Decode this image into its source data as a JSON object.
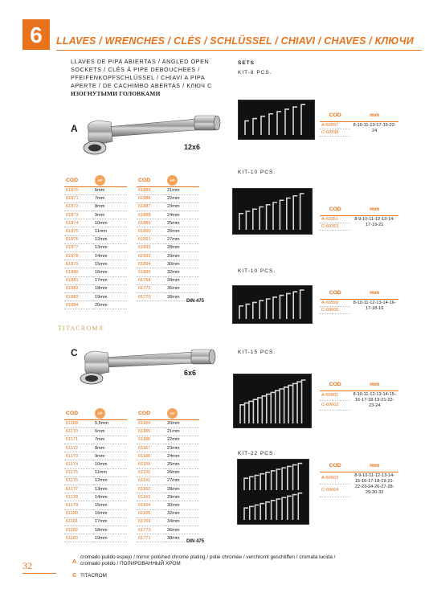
{
  "header": {
    "chapter_number": "6",
    "title": "LLAVES / WRENCHES / CLÉS / SCHLÜSSEL / CHIAVI / CHAVES / КЛЮЧИ"
  },
  "description": {
    "lines": [
      "LLAVES DE PIPA ABIERTAS / ANGLED OPEN",
      "SOCKETS / CLÉS À PIPE DEBOUCHEES /",
      "PFEIFENKOPFSCHLÜSSEL / CHIAVI A PIPA",
      "APERTE / DE CACHIMBO ABERTAS / КЛЮЧ С"
    ],
    "ru_line": "ИЗОГНУТЫМИ ГОЛОВКАМИ"
  },
  "product_a": {
    "letter": "A",
    "size": "12x6"
  },
  "product_c": {
    "letter": "C",
    "size": "6x6"
  },
  "table_header": {
    "code": "COD",
    "af": "AF"
  },
  "table_a_left": [
    [
      "61870",
      "6mm"
    ],
    [
      "61871",
      "7mm"
    ],
    [
      "61872",
      "8mm"
    ],
    [
      "61873",
      "9mm"
    ],
    [
      "61874",
      "10mm"
    ],
    [
      "61875",
      "11mm"
    ],
    [
      "61876",
      "12mm"
    ],
    [
      "61877",
      "13mm"
    ],
    [
      "61878",
      "14mm"
    ],
    [
      "61879",
      "15mm"
    ],
    [
      "61880",
      "16mm"
    ],
    [
      "61881",
      "17mm"
    ],
    [
      "61882",
      "18mm"
    ],
    [
      "61883",
      "19mm"
    ],
    [
      "61884",
      "20mm"
    ]
  ],
  "table_a_right": [
    [
      "61885",
      "21mm"
    ],
    [
      "61886",
      "22mm"
    ],
    [
      "61887",
      "23mm"
    ],
    [
      "61888",
      "24mm"
    ],
    [
      "61889",
      "25mm"
    ],
    [
      "61890",
      "26mm"
    ],
    [
      "61891",
      "27mm"
    ],
    [
      "61892",
      "28mm"
    ],
    [
      "61893",
      "29mm"
    ],
    [
      "61894",
      "30mm"
    ],
    [
      "61895",
      "32mm"
    ],
    [
      "61768",
      "34mm"
    ],
    [
      "61772",
      "36mm"
    ],
    [
      "61770",
      "38mm"
    ]
  ],
  "table_c_left": [
    [
      "61168",
      "5,5mm"
    ],
    [
      "61170",
      "6mm"
    ],
    [
      "61171",
      "7mm"
    ],
    [
      "61172",
      "8mm"
    ],
    [
      "61173",
      "9mm"
    ],
    [
      "61174",
      "10mm"
    ],
    [
      "61175",
      "11mm"
    ],
    [
      "61176",
      "12mm"
    ],
    [
      "61177",
      "13mm"
    ],
    [
      "61178",
      "14mm"
    ],
    [
      "61179",
      "15mm"
    ],
    [
      "61180",
      "16mm"
    ],
    [
      "61181",
      "17mm"
    ],
    [
      "61182",
      "18mm"
    ],
    [
      "61183",
      "19mm"
    ]
  ],
  "table_c_right": [
    [
      "61184",
      "20mm"
    ],
    [
      "61185",
      "21mm"
    ],
    [
      "61186",
      "22mm"
    ],
    [
      "61187",
      "23mm"
    ],
    [
      "61188",
      "24mm"
    ],
    [
      "61189",
      "25mm"
    ],
    [
      "61190",
      "26mm"
    ],
    [
      "61191",
      "27mm"
    ],
    [
      "61192",
      "28mm"
    ],
    [
      "61193",
      "29mm"
    ],
    [
      "61194",
      "30mm"
    ],
    [
      "61195",
      "32mm"
    ],
    [
      "61769",
      "34mm"
    ],
    [
      "61773",
      "36mm"
    ],
    [
      "61771",
      "38mm"
    ]
  ],
  "din": "DIN 475",
  "brand_titacrom": "TITACROM®",
  "sets": {
    "title": "SETS",
    "mm_header": "mm",
    "kits": [
      {
        "label": "KIT-8 PCS.",
        "codes": [
          "A-60597",
          "C-60598"
        ],
        "sizes": "8-10-11-13-17-19-22-24"
      },
      {
        "label": "KIT-10 PCS.",
        "codes": [
          "A-60351",
          "C-60353"
        ],
        "sizes": "8-9-10-11-12-13-14-17-19-21"
      },
      {
        "label": "KIT-10 PCS.",
        "codes": [
          "A-60599",
          "C-60600"
        ],
        "sizes": "8-10-11-12-13-14-16-17-18-19"
      },
      {
        "label": "KIT-15 PCS.",
        "codes": [
          "A-60601",
          "C-60602"
        ],
        "sizes": "8-10-11-12-13-14-15-16-17-18-19-21-22-23-24"
      },
      {
        "label": "KIT-22 PCS.",
        "codes": [
          "A-60603",
          "C-60604"
        ],
        "sizes": "8-9-10-11-12-13-14-15-16-17-18-19-21-22-23-24-26-27-28-29-30-32"
      }
    ]
  },
  "footer": {
    "page_number": "32",
    "finish_a_letter": "A",
    "finish_a_text": "cromado pulido espejo / mirror polished chrome plating / polie chromée / verchromt geschliffen / cromata lucida / cromado polido / ПОЛИРОВАННЫЙ ХРОМ",
    "finish_c_letter": "C",
    "finish_c_text": "TITACROM"
  }
}
